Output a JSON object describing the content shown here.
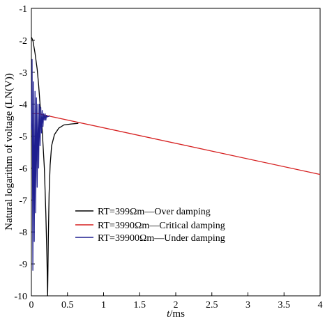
{
  "chart_data": {
    "type": "line",
    "title": "",
    "xlabel_italic": "t",
    "xlabel_rest": "/ms",
    "ylabel": "Natural logarithm of voltage (LN(V))",
    "xlim": [
      0,
      4
    ],
    "ylim": [
      -10,
      -1
    ],
    "x_ticks": [
      "0",
      "0.5",
      "1",
      "1.5",
      "2",
      "2.5",
      "3",
      "3.5",
      "4"
    ],
    "y_ticks": [
      "-1",
      "-2",
      "-3",
      "-4",
      "-5",
      "-6",
      "-7",
      "-8",
      "-9",
      "-10"
    ],
    "grid": false,
    "legend_position": "center-left",
    "series": [
      {
        "name": "RT=399Ωm—Over damping",
        "color": "#000000",
        "x": [
          0,
          0.02,
          0.05,
          0.08,
          0.1,
          0.12,
          0.15,
          0.18,
          0.2,
          0.215,
          0.225,
          0.235,
          0.245,
          0.26,
          0.28,
          0.32,
          0.38,
          0.45,
          0.55,
          0.65
        ],
        "y": [
          -1.9,
          -2.0,
          -2.4,
          -2.9,
          -3.4,
          -4.0,
          -4.8,
          -6.0,
          -7.4,
          -8.8,
          -10.0,
          -8.2,
          -6.8,
          -5.9,
          -5.3,
          -4.95,
          -4.75,
          -4.65,
          -4.62,
          -4.6
        ]
      },
      {
        "name": "RT=3990Ωm—Critical damping",
        "color": "#d62020",
        "x": [
          0,
          0.1,
          0.2,
          4.0
        ],
        "y": [
          -4.3,
          -4.3,
          -4.35,
          -6.2
        ]
      },
      {
        "name": "RT=39900Ωm—Under damping",
        "color": "#1f1f8f",
        "x": [
          0.0,
          0.01,
          0.02,
          0.03,
          0.04,
          0.05,
          0.06,
          0.07,
          0.08,
          0.09,
          0.1,
          0.11,
          0.12,
          0.13,
          0.14,
          0.15,
          0.16,
          0.17,
          0.18,
          0.19,
          0.2,
          0.21,
          0.22,
          0.24,
          0.26
        ],
        "y": [
          -4.8,
          -2.6,
          -9.2,
          -3.3,
          -8.3,
          -3.6,
          -7.4,
          -3.8,
          -6.6,
          -4.0,
          -6.0,
          -4.0,
          -5.3,
          -4.1,
          -4.9,
          -4.2,
          -4.7,
          -4.3,
          -4.5,
          -4.3,
          -4.5,
          -4.35,
          -4.4,
          -4.38,
          -4.36
        ]
      }
    ]
  }
}
